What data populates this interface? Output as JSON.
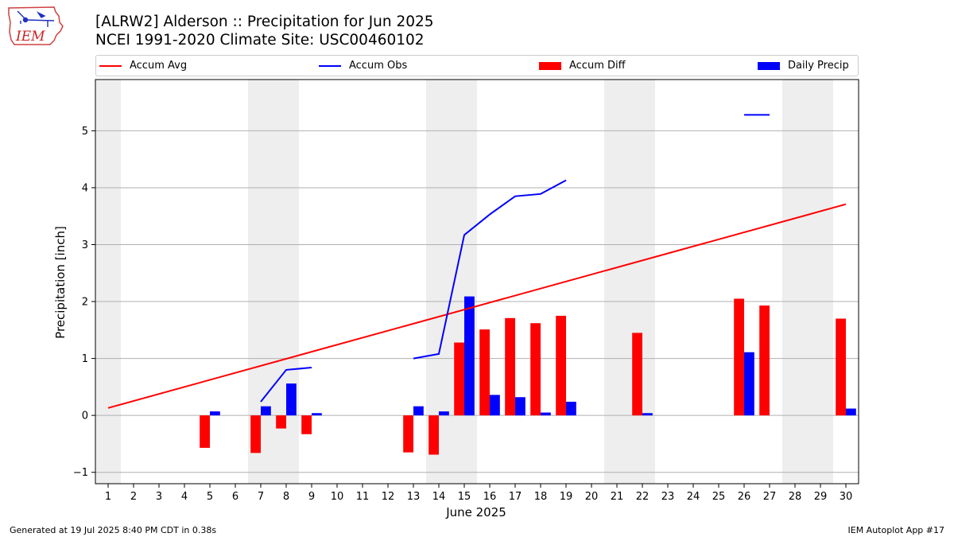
{
  "header": {
    "title_line1": "[ALRW2] Alderson :: Precipitation for Jun 2025",
    "title_line2": "NCEI 1991-2020 Climate Site: USC00460102",
    "logo_text": "IEM"
  },
  "footer": {
    "generated": "Generated at 19 Jul 2025 8:40 PM CDT in 0.38s",
    "app": "IEM Autoplot App #17"
  },
  "colors": {
    "avg": "#ff0000",
    "obs": "#0000ff",
    "diff": "#ff0000",
    "daily": "#0000ff",
    "weekend": "#eeeeee",
    "grid": "#b0b0b0"
  },
  "chart_data": {
    "type": "bar",
    "xlabel": "June 2025",
    "ylabel": "Precipitation [inch]",
    "xlim": [
      0.5,
      30.5
    ],
    "ylim": [
      -1.2,
      5.9
    ],
    "yticks": [
      -1,
      0,
      1,
      2,
      3,
      4,
      5
    ],
    "xticks": [
      1,
      2,
      3,
      4,
      5,
      6,
      7,
      8,
      9,
      10,
      11,
      12,
      13,
      14,
      15,
      16,
      17,
      18,
      19,
      20,
      21,
      22,
      23,
      24,
      25,
      26,
      27,
      28,
      29,
      30
    ],
    "weekend_spans": [
      [
        0.5,
        1.5
      ],
      [
        6.5,
        8.5
      ],
      [
        13.5,
        15.5
      ],
      [
        20.5,
        22.5
      ],
      [
        27.5,
        29.5
      ]
    ],
    "grid": "horizontal",
    "legend": {
      "placement": "top",
      "entries": [
        "Accum Avg",
        "Accum Obs",
        "Accum Diff",
        "Daily Precip"
      ]
    },
    "series": [
      {
        "name": "Accum Avg",
        "kind": "line",
        "x": [
          1,
          30
        ],
        "y": [
          0.13,
          3.71
        ]
      },
      {
        "name": "Accum Obs",
        "kind": "line",
        "segments": [
          {
            "x": [
              7,
              8,
              9
            ],
            "y": [
              0.24,
              0.8,
              0.84
            ]
          },
          {
            "x": [
              13,
              14,
              15,
              16,
              17,
              18,
              19
            ],
            "y": [
              1.0,
              1.08,
              3.17,
              3.53,
              3.85,
              3.89,
              4.13
            ]
          },
          {
            "x": [
              26,
              27
            ],
            "y": [
              5.28,
              5.28
            ]
          }
        ]
      },
      {
        "name": "Accum Diff",
        "kind": "bar",
        "x": [
          5,
          7,
          8,
          9,
          13,
          14,
          15,
          16,
          17,
          18,
          19,
          22,
          26,
          27,
          30
        ],
        "y": [
          -0.57,
          -0.66,
          -0.23,
          -0.33,
          -0.65,
          -0.69,
          1.28,
          1.51,
          1.71,
          1.62,
          1.75,
          1.45,
          2.05,
          1.93,
          1.7
        ]
      },
      {
        "name": "Daily Precip",
        "kind": "bar",
        "x": [
          5,
          7,
          8,
          9,
          13,
          14,
          15,
          16,
          17,
          18,
          19,
          22,
          26,
          30
        ],
        "y": [
          0.07,
          0.16,
          0.56,
          0.04,
          0.16,
          0.07,
          2.09,
          0.36,
          0.32,
          0.05,
          0.24,
          0.04,
          1.11,
          0.12
        ]
      }
    ]
  }
}
